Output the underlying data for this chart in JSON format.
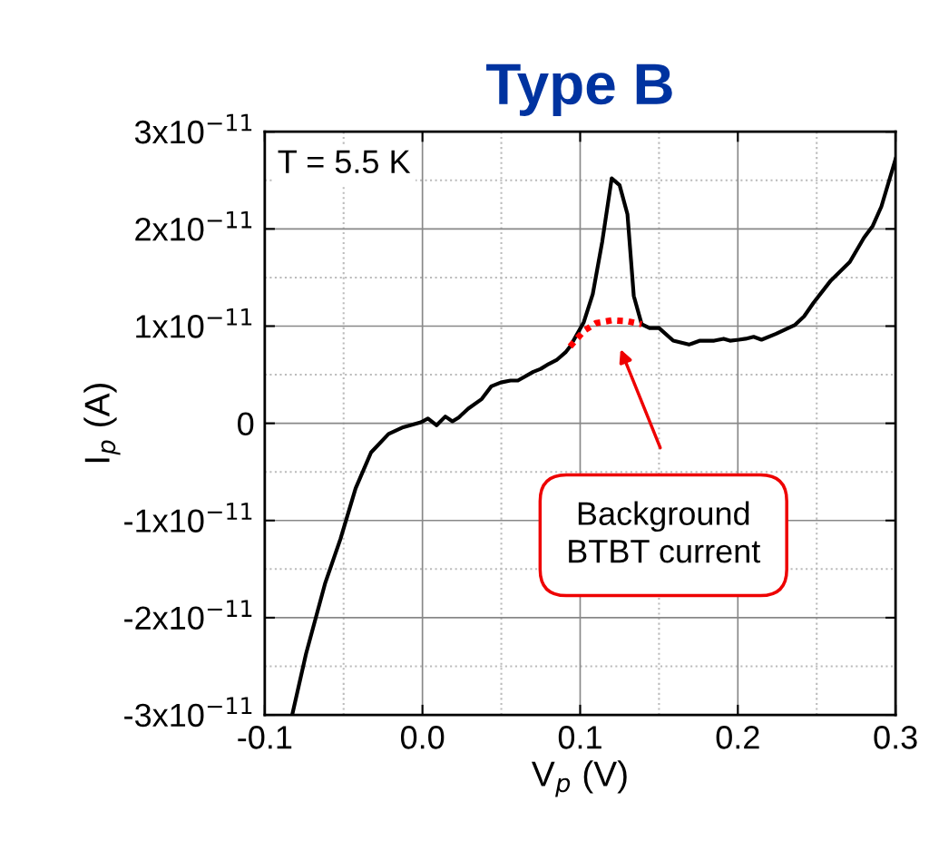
{
  "chart_data": {
    "type": "line",
    "title": "Type B",
    "xlabel": "V$_{p}$ (V)",
    "ylabel": "I$_{p}$ (A)",
    "xlim": [
      -0.1,
      0.3
    ],
    "xticks": [
      {
        "value": -0.1,
        "label": "-0.1"
      },
      {
        "value": 0.0,
        "label": "0.0"
      },
      0.1,
      0.2,
      0.3
    ],
    "ylim": [
      -3e-11,
      3e-11
    ],
    "yticks": [
      {
        "value": -3e-11,
        "label": "-3x10$^{−11}$"
      },
      {
        "value": -2e-11,
        "label": "-2x10$^{−11}$"
      },
      {
        "value": -1e-11,
        "label": "-1x10$^{−11}$"
      },
      0,
      {
        "value": 1e-11,
        "label": "1x10$^{−11}$"
      },
      {
        "value": 2e-11,
        "label": "2x10$^{−11}$"
      },
      {
        "value": 3e-11,
        "label": "3x10$^{−11}$"
      }
    ],
    "grid": true,
    "line_style": "solid",
    "marker": "none",
    "series": [
      {
        "color": "#000000",
        "x": [
          -0.0826,
          -0.0738,
          -0.0616,
          -0.052,
          -0.0424,
          -0.0326,
          -0.0215,
          -0.0122,
          -0.001,
          0.0035,
          0.009,
          0.0145,
          0.019,
          0.023,
          0.029,
          0.0376,
          0.0436,
          0.0497,
          0.0558,
          0.0605,
          0.0703,
          0.075,
          0.08,
          0.085,
          0.0907,
          0.0936,
          0.1023,
          0.108,
          0.114,
          0.12,
          0.125,
          0.13,
          0.134,
          0.139,
          0.144,
          0.15,
          0.159,
          0.169,
          0.176,
          0.185,
          0.191,
          0.195,
          0.2006,
          0.205,
          0.21,
          0.215,
          0.224,
          0.236,
          0.242,
          0.248,
          0.259,
          0.271,
          0.28,
          0.2855,
          0.291,
          0.3
        ],
        "values": [
          -3e-11,
          -2.37e-11,
          -1.64e-11,
          -1.19e-11,
          -6.7e-12,
          -3e-12,
          -1.1e-12,
          -4e-13,
          1e-13,
          5e-13,
          -2e-13,
          7e-13,
          2e-13,
          6e-13,
          1.5e-12,
          2.5e-12,
          3.8e-12,
          4.2e-12,
          4.4e-12,
          4.4e-12,
          5.3e-12,
          5.6e-12,
          6.1e-12,
          6.5e-12,
          7.3e-12,
          7.9e-12,
          1.04e-11,
          1.33e-11,
          1.87e-11,
          2.52e-11,
          2.45e-11,
          2.15e-11,
          1.31e-11,
          1.02e-11,
          9.8e-12,
          9.8e-12,
          8.5e-12,
          8.1e-12,
          8.5e-12,
          8.5e-12,
          8.7e-12,
          8.5e-12,
          8.6e-12,
          8.7e-12,
          8.9e-12,
          8.6e-12,
          9.2e-12,
          1.01e-11,
          1.1e-11,
          1.24e-11,
          1.47e-11,
          1.66e-11,
          1.91e-11,
          2.03e-11,
          2.23e-11,
          2.72e-11
        ]
      },
      {
        "color": "#ff0000",
        "line_style": "dotted",
        "x": [
          0.0936,
          0.1023,
          0.11,
          0.12,
          0.13,
          0.139
        ],
        "values": [
          7.9e-12,
          9.5e-12,
          1.03e-11,
          1.06e-11,
          1.05e-11,
          1.02e-11
        ]
      }
    ],
    "annotations": [
      "T = 5.5 K",
      "Background\nBTBT current"
    ]
  }
}
